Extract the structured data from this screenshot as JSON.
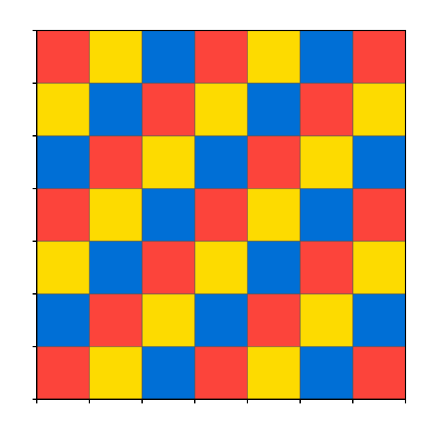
{
  "chart_data": {
    "type": "heatmap",
    "rows": 7,
    "cols": 7,
    "palette": [
      "#FC443B",
      "#FDDB00",
      "#006FD6"
    ],
    "cell_border_color": "#555555",
    "grid": false,
    "axis_color": "#000000",
    "ticks": {
      "x_count": 8,
      "y_count": 8,
      "labels_shown": false
    },
    "cells": [
      [
        0,
        1,
        2,
        0,
        1,
        2,
        0
      ],
      [
        1,
        2,
        0,
        1,
        2,
        0,
        1
      ],
      [
        2,
        0,
        1,
        2,
        0,
        1,
        2
      ],
      [
        0,
        1,
        2,
        0,
        1,
        2,
        0
      ],
      [
        1,
        2,
        0,
        1,
        2,
        0,
        1
      ],
      [
        2,
        0,
        1,
        2,
        0,
        1,
        2
      ],
      [
        0,
        1,
        2,
        0,
        1,
        2,
        0
      ]
    ]
  }
}
